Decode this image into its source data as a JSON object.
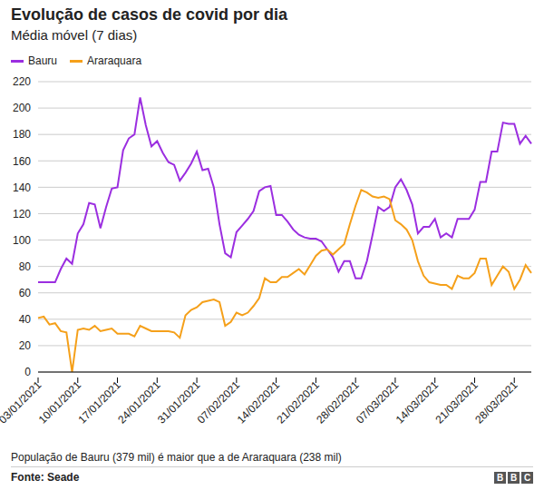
{
  "chart_data": {
    "type": "line",
    "title": "Evolução de casos de covid por dia",
    "subtitle": "Média móvel (7 dias)",
    "footnote": "População de Bauru (379 mil) é maior que a de Araraquara (238 mil)",
    "source": "Fonte: Seade",
    "logo": "BBC",
    "legend": "top-left",
    "grid": true,
    "ylim": [
      0,
      220
    ],
    "yticks": [
      0,
      20,
      40,
      60,
      80,
      100,
      120,
      140,
      160,
      180,
      200,
      220
    ],
    "categories": [
      "03/01/2021",
      null,
      null,
      null,
      null,
      null,
      null,
      "10/01/2021",
      null,
      null,
      null,
      null,
      null,
      null,
      "17/01/2021",
      null,
      null,
      null,
      null,
      null,
      null,
      "24/01/2021",
      null,
      null,
      null,
      null,
      null,
      null,
      "31/01/2021",
      null,
      null,
      null,
      null,
      null,
      null,
      "07/02/2021",
      null,
      null,
      null,
      null,
      null,
      null,
      "14/02/2021",
      null,
      null,
      null,
      null,
      null,
      null,
      "21/02/2021",
      null,
      null,
      null,
      null,
      null,
      null,
      "28/02/2021",
      null,
      null,
      null,
      null,
      null,
      null,
      "07/03/2021",
      null,
      null,
      null,
      null,
      null,
      null,
      "14/03/2021",
      null,
      null,
      null,
      null,
      null,
      null,
      "21/03/2021",
      null,
      null,
      null,
      null,
      null,
      null,
      "28/03/2021",
      null,
      null,
      null
    ],
    "series": [
      {
        "name": "Bauru",
        "color": "#9b2ee0",
        "values": [
          68,
          68,
          68,
          68,
          78,
          86,
          82,
          105,
          112,
          128,
          127,
          109,
          125,
          139,
          140,
          168,
          177,
          180,
          208,
          187,
          171,
          175,
          166,
          159,
          157,
          145,
          151,
          158,
          167,
          153,
          154,
          140,
          112,
          90,
          87,
          106,
          111,
          116,
          122,
          137,
          140,
          141,
          119,
          119,
          114,
          108,
          104,
          102,
          101,
          101,
          99,
          93,
          87,
          76,
          84,
          84,
          71,
          71,
          84,
          104,
          125,
          122,
          125,
          140,
          146,
          138,
          127,
          105,
          110,
          110,
          116,
          102,
          105,
          102,
          116,
          116,
          116,
          123,
          144,
          144,
          167,
          167,
          189,
          188,
          188,
          173,
          179,
          173
        ]
      },
      {
        "name": "Araraquara",
        "color": "#f5a01a",
        "values": [
          41,
          42,
          36,
          37,
          31,
          30,
          0,
          32,
          33,
          32,
          35,
          31,
          32,
          33,
          29,
          29,
          29,
          27,
          35,
          33,
          31,
          31,
          31,
          31,
          30,
          26,
          43,
          47,
          49,
          53,
          54,
          55,
          53,
          35,
          38,
          45,
          43,
          45,
          50,
          56,
          71,
          68,
          68,
          72,
          72,
          75,
          78,
          74,
          81,
          88,
          92,
          93,
          89,
          93,
          97,
          112,
          126,
          138,
          136,
          133,
          132,
          133,
          131,
          115,
          112,
          108,
          100,
          84,
          73,
          68,
          67,
          66,
          66,
          63,
          73,
          71,
          71,
          75,
          86,
          86,
          66,
          73,
          80,
          76,
          63,
          70,
          81,
          75
        ]
      }
    ]
  }
}
